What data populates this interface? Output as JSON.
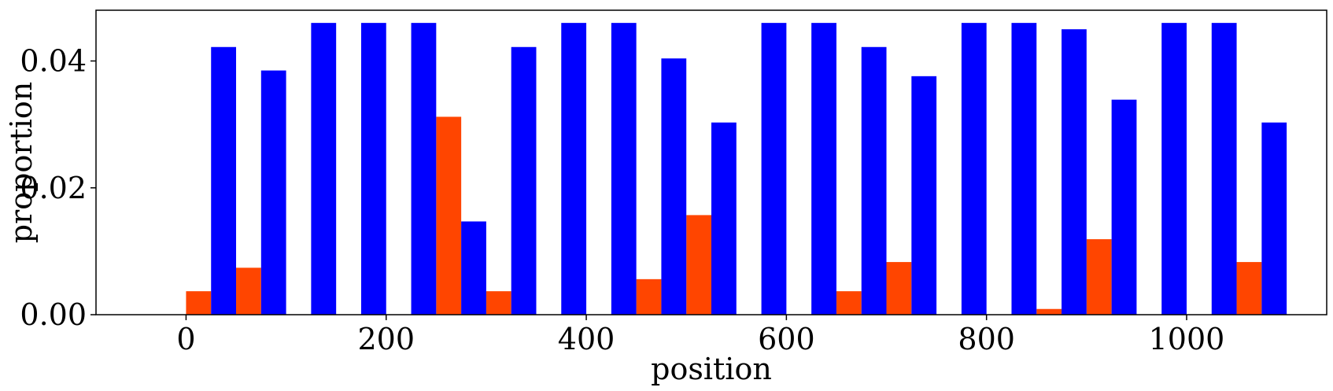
{
  "chart_data": {
    "type": "bar",
    "xlabel": "position",
    "ylabel": "proportion",
    "xlim": [
      -90,
      1140
    ],
    "ylim": [
      0,
      0.048
    ],
    "bar_width": 25,
    "x_ticks": [
      0,
      200,
      400,
      600,
      800,
      1000
    ],
    "y_ticks": [
      0.0,
      0.02,
      0.04
    ],
    "x_tick_labels": [
      "0",
      "200",
      "400",
      "600",
      "800",
      "1000"
    ],
    "y_tick_labels": [
      "0.00",
      "0.02",
      "0.04"
    ],
    "grid": false,
    "legend": "none",
    "series": [
      {
        "color": "#FF4500",
        "x": [
          0,
          50,
          250,
          300,
          450,
          500,
          650,
          700,
          850,
          900,
          1050
        ],
        "values": [
          0.0037,
          0.0074,
          0.0312,
          0.0037,
          0.0056,
          0.0157,
          0.0037,
          0.0083,
          0.0009,
          0.0119,
          0.0083
        ]
      },
      {
        "color": "#0000FF",
        "x": [
          25,
          75,
          125,
          175,
          225,
          275,
          325,
          375,
          425,
          475,
          525,
          575,
          625,
          675,
          725,
          775,
          825,
          875,
          925,
          975,
          1025,
          1075
        ],
        "values": [
          0.0422,
          0.0385,
          0.046,
          0.046,
          0.046,
          0.0147,
          0.0422,
          0.046,
          0.046,
          0.0404,
          0.0303,
          0.046,
          0.046,
          0.0422,
          0.0376,
          0.046,
          0.046,
          0.045,
          0.0339,
          0.046,
          0.046,
          0.0303
        ]
      }
    ]
  }
}
